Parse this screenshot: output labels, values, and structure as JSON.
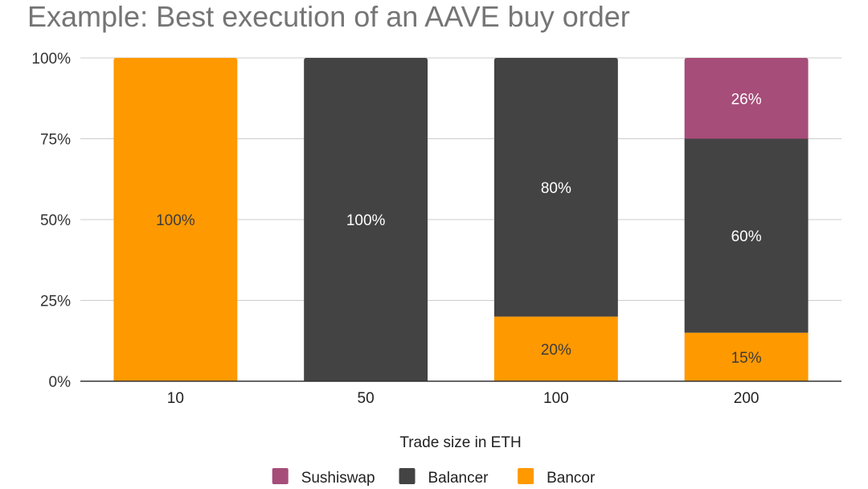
{
  "chart_data": {
    "type": "bar",
    "stacked": true,
    "title": "Example: Best execution of an AAVE buy order",
    "xlabel": "Trade size in ETH",
    "ylabel": "",
    "ylim": [
      0,
      100
    ],
    "yticks": [
      "0%",
      "25%",
      "50%",
      "75%",
      "100%"
    ],
    "categories": [
      "10",
      "50",
      "100",
      "200"
    ],
    "series": [
      {
        "name": "Bancor",
        "color": "#ff9900",
        "values": [
          100,
          0,
          20,
          15
        ],
        "labels": [
          "100%",
          "",
          "20%",
          "15%"
        ],
        "label_color": "#3c3c3c"
      },
      {
        "name": "Balancer",
        "color": "#434343",
        "values": [
          0,
          100,
          80,
          60
        ],
        "labels": [
          "",
          "100%",
          "80%",
          "60%"
        ],
        "label_color": "#ffffff"
      },
      {
        "name": "Sushiswap",
        "color": "#a64d79",
        "values": [
          0,
          0,
          0,
          26
        ],
        "labels": [
          "",
          "",
          "",
          "26%"
        ],
        "label_color": "#ffffff"
      }
    ],
    "legend": {
      "position": "bottom",
      "order": [
        "Sushiswap",
        "Balancer",
        "Bancor"
      ]
    },
    "grid": true
  }
}
